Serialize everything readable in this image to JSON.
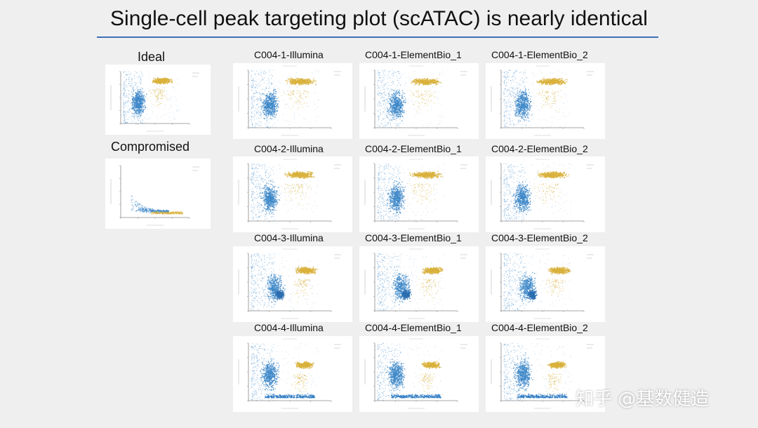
{
  "slide": {
    "title": "Single-cell peak targeting plot (scATAC) is nearly identical",
    "accent_color": "#3f6fb5",
    "watermark": "知乎 @基数健造"
  },
  "colors": {
    "cell_color": "#d9b13c",
    "noncell_color": "#3a86c8"
  },
  "chart_data": [
    {
      "type": "scatter",
      "panel": "ideal",
      "label": "Ideal",
      "pattern": "ideal"
    },
    {
      "type": "scatter",
      "panel": "compromised",
      "label": "Compromised",
      "pattern": "compromised"
    },
    {
      "type": "scatter",
      "panel": "c004-1-illumina",
      "label": "C004-1-Illumina",
      "pattern": "standard"
    },
    {
      "type": "scatter",
      "panel": "c004-1-elementbio-1",
      "label": "C004-1-ElementBio_1",
      "pattern": "standard"
    },
    {
      "type": "scatter",
      "panel": "c004-1-elementbio-2",
      "label": "C004-1-ElementBio_2",
      "pattern": "standard"
    },
    {
      "type": "scatter",
      "panel": "c004-2-illumina",
      "label": "C004-2-Illumina",
      "pattern": "standard"
    },
    {
      "type": "scatter",
      "panel": "c004-2-elementbio-1",
      "label": "C004-2-ElementBio_1",
      "pattern": "standard"
    },
    {
      "type": "scatter",
      "panel": "c004-2-elementbio-2",
      "label": "C004-2-ElementBio_2",
      "pattern": "standard"
    },
    {
      "type": "scatter",
      "panel": "c004-3-illumina",
      "label": "C004-3-Illumina",
      "pattern": "compact"
    },
    {
      "type": "scatter",
      "panel": "c004-3-elementbio-1",
      "label": "C004-3-ElementBio_1",
      "pattern": "compact"
    },
    {
      "type": "scatter",
      "panel": "c004-3-elementbio-2",
      "label": "C004-3-ElementBio_2",
      "pattern": "compact"
    },
    {
      "type": "scatter",
      "panel": "c004-4-illumina",
      "label": "C004-4-Illumina",
      "pattern": "cluster"
    },
    {
      "type": "scatter",
      "panel": "c004-4-elementbio-1",
      "label": "C004-4-ElementBio_1",
      "pattern": "cluster"
    },
    {
      "type": "scatter",
      "panel": "c004-4-elementbio-2",
      "label": "C004-4-ElementBio_2",
      "pattern": "cluster"
    }
  ]
}
